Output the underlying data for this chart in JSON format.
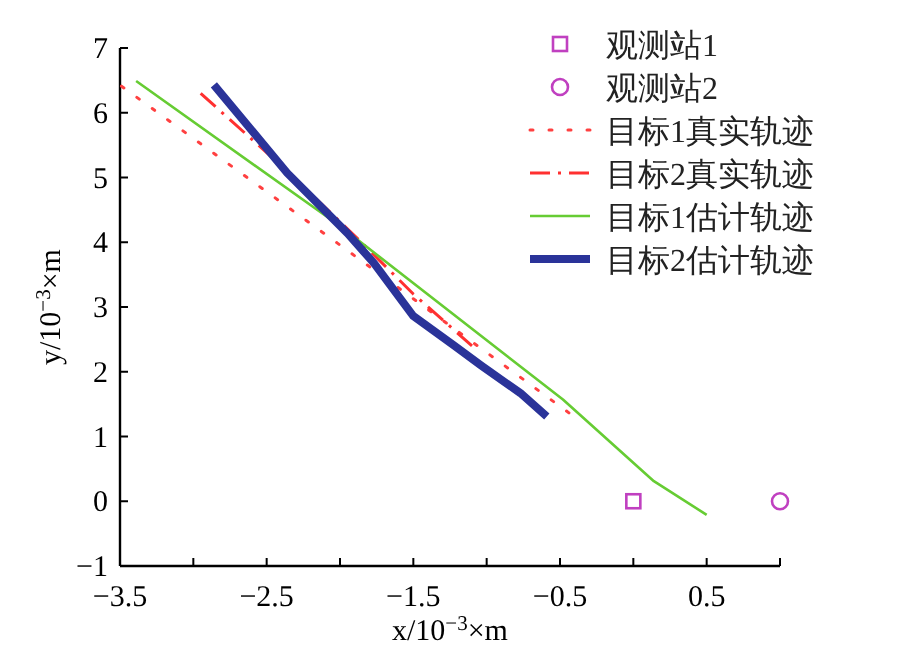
{
  "chart_data": {
    "type": "line",
    "xlabel": "x/10$^{−3}$×m",
    "ylabel": "y/10$^{−3}$×m",
    "xlim": [
      -3.5,
      1
    ],
    "ylim": [
      -1,
      7
    ],
    "xticks": [
      -3.5,
      {
        "value": -3,
        "label": null
      },
      -2.5,
      {
        "value": -2,
        "label": null
      },
      -1.5,
      {
        "value": -1,
        "label": null
      },
      -0.5,
      {
        "value": 0,
        "label": null
      },
      0.5,
      {
        "value": 1,
        "label": null
      }
    ],
    "yticks": [
      -1,
      0,
      1,
      2,
      3,
      4,
      5,
      6,
      7
    ],
    "grid": false,
    "legend": "top right",
    "series": [
      {
        "name": "观测站1",
        "type": "scatter",
        "marker": "square",
        "color": "#c040c0",
        "x": [
          0
        ],
        "values": [
          0
        ]
      },
      {
        "name": "观测站2",
        "type": "scatter",
        "marker": "circle",
        "color": "#c040c0",
        "x": [
          1
        ],
        "values": [
          0
        ]
      },
      {
        "name": "目标1真实轨迹",
        "type": "line",
        "line_style": "dotted",
        "color": "#ff4040",
        "x": [
          -3.49,
          -2.02,
          -0.43
        ],
        "values": [
          6.41,
          3.99,
          1.35
        ]
      },
      {
        "name": "目标2真实轨迹",
        "type": "line",
        "line_style": "dashed",
        "color": "#ff3030",
        "x": [
          -2.95,
          -2.36,
          -1.9,
          -1.5,
          -1.1
        ],
        "values": [
          6.3,
          5.1,
          4.1,
          3.2,
          2.4
        ]
      },
      {
        "name": "目标1估计轨迹",
        "type": "line",
        "line_style": "solid",
        "color": "#66cc33",
        "x": [
          -3.39,
          -2.0,
          -0.48,
          0.14,
          0.5
        ],
        "values": [
          6.49,
          4.25,
          1.57,
          0.31,
          -0.21
        ]
      },
      {
        "name": "目标2估计轨迹",
        "type": "line",
        "line_style": "solid",
        "color": "#2a3399",
        "x": [
          -2.86,
          -2.36,
          -1.95,
          -1.77,
          -1.5,
          -1.22,
          -1.04,
          -0.77,
          -0.59
        ],
        "values": [
          6.43,
          5.07,
          4.14,
          3.68,
          2.86,
          2.4,
          2.1,
          1.67,
          1.31
        ]
      }
    ]
  }
}
